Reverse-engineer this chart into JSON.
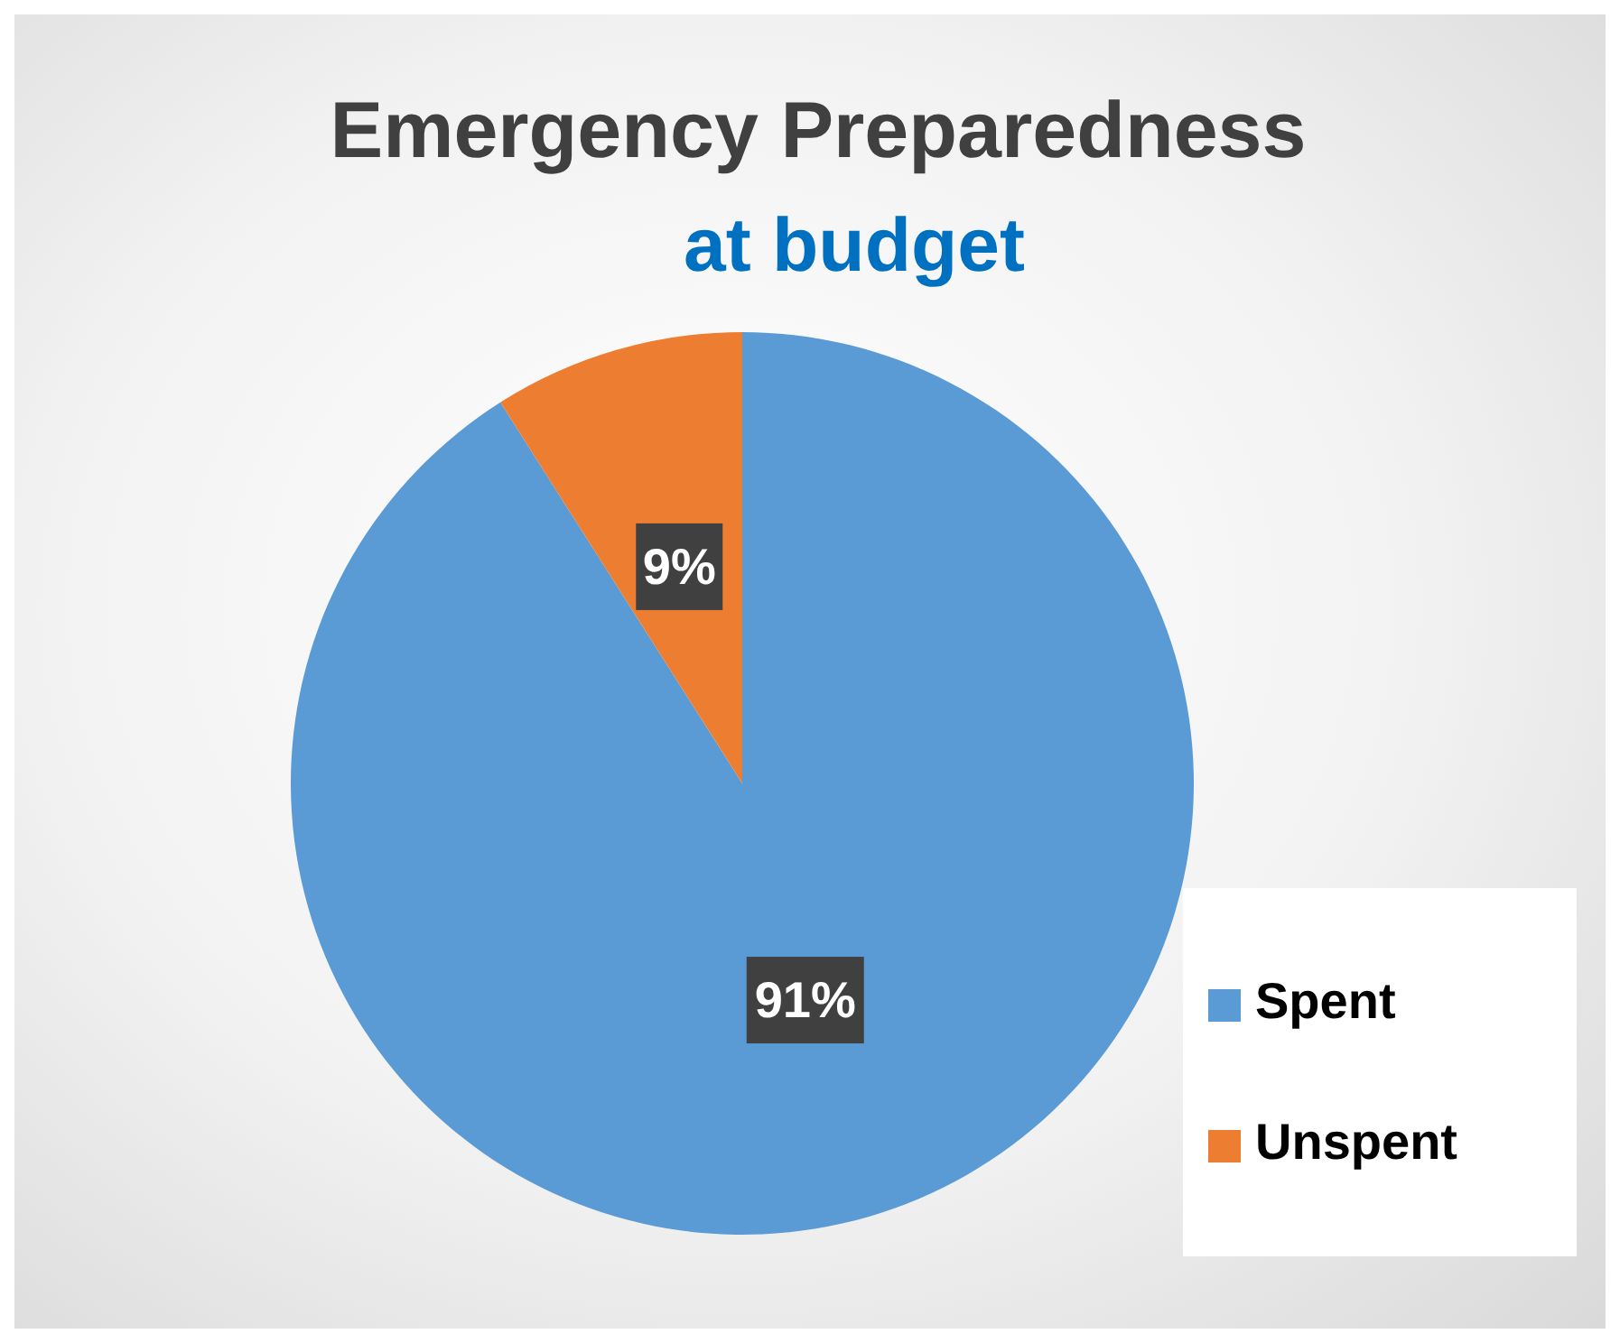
{
  "chart_data": {
    "type": "pie",
    "title": "Emergency Preparedness",
    "subtitle": "at budget",
    "categories": [
      "Spent",
      "Unspent"
    ],
    "values": [
      91,
      9
    ],
    "value_labels": [
      "91%",
      "9%"
    ],
    "colors": [
      "#5b9bd5",
      "#ed7d31"
    ],
    "legend": "bottom right"
  }
}
